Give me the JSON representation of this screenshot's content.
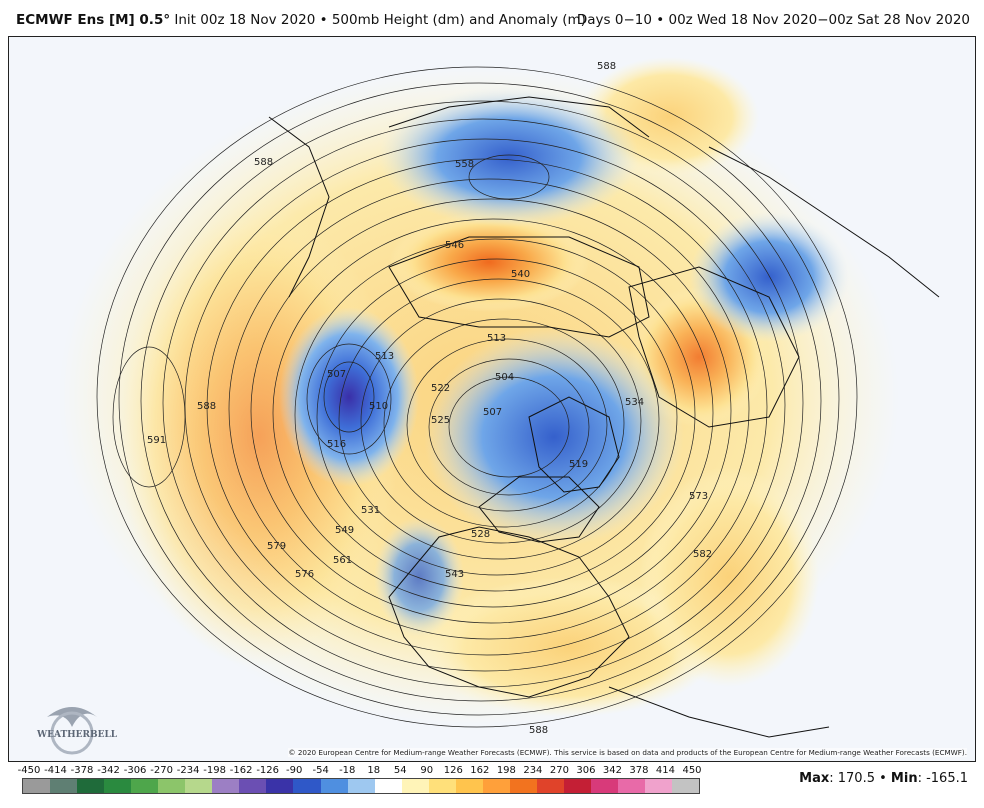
{
  "header": {
    "model": "ECMWF Ens [M] 0.5",
    "degree": "°",
    "title_rest": "Init 00z 18 Nov 2020 • 500mb Height (dm) and Anomaly (m)",
    "valid_range": "Days 0−10 • 00z Wed 18 Nov 2020−00z Sat 28 Nov 2020"
  },
  "map": {
    "projection": "north-polar-stereographic",
    "copyright": "© 2020 European Centre for Medium-range Weather Forecasts (ECMWF). This service is based on data and products of the European Centre for Medium-range Weather Forecasts (ECMWF).",
    "logo_text": "WEATHERBELL",
    "contour_labels": [
      {
        "text": "588"
      },
      {
        "text": "588"
      },
      {
        "text": "588"
      },
      {
        "text": "591"
      },
      {
        "text": "558"
      },
      {
        "text": "546"
      },
      {
        "text": "540"
      },
      {
        "text": "513"
      },
      {
        "text": "513"
      },
      {
        "text": "504"
      },
      {
        "text": "507"
      },
      {
        "text": "507"
      },
      {
        "text": "510"
      },
      {
        "text": "516"
      },
      {
        "text": "519"
      },
      {
        "text": "522"
      },
      {
        "text": "525"
      },
      {
        "text": "528"
      },
      {
        "text": "531"
      },
      {
        "text": "534"
      },
      {
        "text": "543"
      },
      {
        "text": "549"
      },
      {
        "text": "561"
      },
      {
        "text": "573"
      },
      {
        "text": "576"
      },
      {
        "text": "579"
      },
      {
        "text": "582"
      },
      {
        "text": "588"
      }
    ],
    "anomaly_features": [
      {
        "kind": "negative",
        "region": "Gulf of Alaska"
      },
      {
        "kind": "negative",
        "region": "Canadian Arctic / Greenland"
      },
      {
        "kind": "negative",
        "region": "Central Asia"
      },
      {
        "kind": "negative",
        "region": "Western Europe"
      },
      {
        "kind": "positive",
        "region": "East Siberian Sea"
      },
      {
        "kind": "positive",
        "region": "Scandinavia"
      },
      {
        "kind": "positive",
        "region": "North Pacific"
      },
      {
        "kind": "positive",
        "region": "Eastern United States"
      },
      {
        "kind": "positive",
        "region": "North Atlantic"
      }
    ]
  },
  "legend": {
    "ticks": [
      "-450",
      "-414",
      "-378",
      "-342",
      "-306",
      "-270",
      "-234",
      "-198",
      "-162",
      "-126",
      "-90",
      "-54",
      "-18",
      "18",
      "54",
      "90",
      "126",
      "162",
      "198",
      "234",
      "270",
      "306",
      "342",
      "378",
      "414",
      "450"
    ],
    "colors": [
      "#9a9a9a",
      "#5f7f73",
      "#1f6b3a",
      "#2a8a3f",
      "#4ea64b",
      "#8cc56a",
      "#b6d88c",
      "#9c7fc4",
      "#6b4fb3",
      "#3a33a8",
      "#2f58c8",
      "#4f8fe0",
      "#9ec8f0",
      "#ffffff",
      "#fff4b8",
      "#ffe07a",
      "#ffc44d",
      "#ffa03a",
      "#f2731f",
      "#e0432a",
      "#c41f35",
      "#d83a7a",
      "#e86aa8",
      "#f0a2cc",
      "#c3c3c3"
    ],
    "max_label": "Max",
    "max_value": ": 170.5",
    "sep": " • ",
    "min_label": "Min",
    "min_value": ": -165.1"
  }
}
